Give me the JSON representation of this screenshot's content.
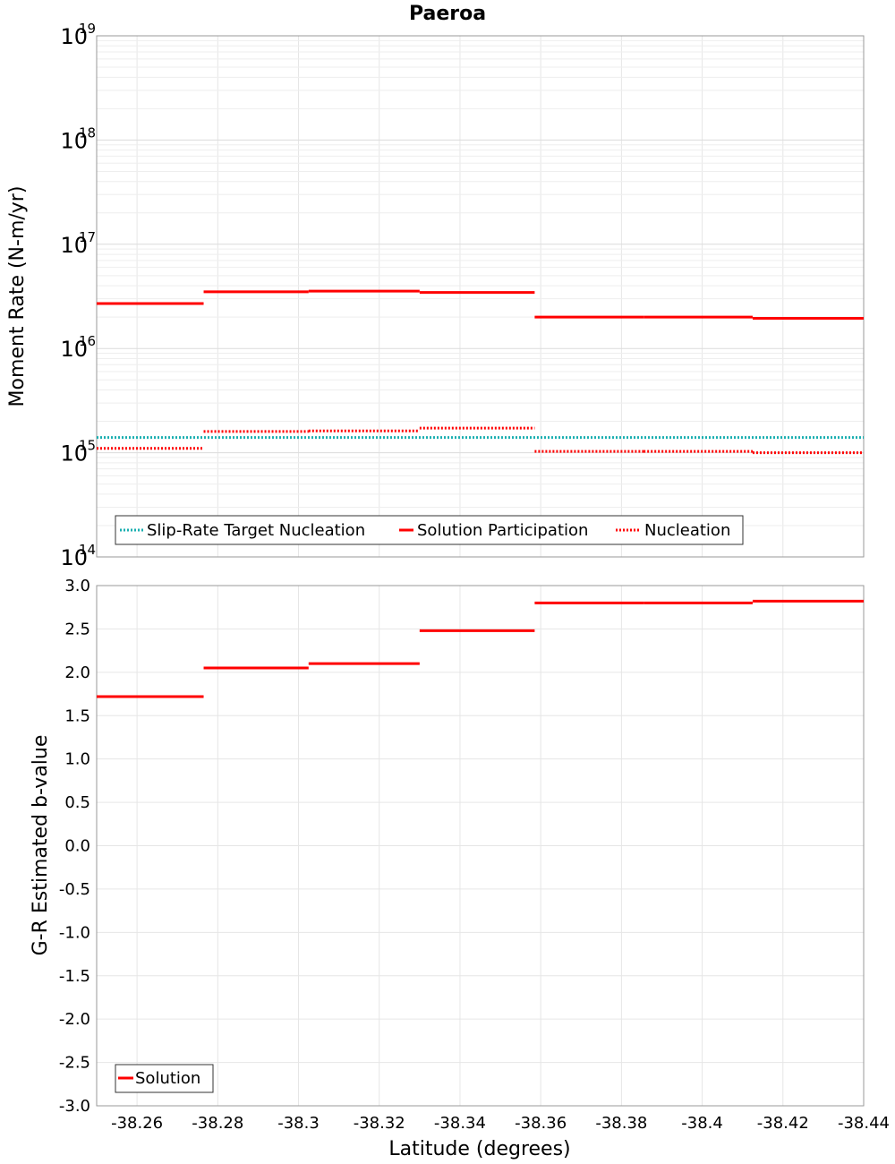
{
  "chart_data": [
    {
      "type": "line",
      "plot": "top",
      "title": "Paeroa",
      "ylabel": "Moment Rate (N-m/yr)",
      "yscale": "log",
      "ylim": [
        100000000000000.0,
        1e+19
      ],
      "xlim": [
        -38.25,
        -38.44
      ],
      "grid": true,
      "y_ticks": [
        {
          "base": "10",
          "exp": "14"
        },
        {
          "base": "10",
          "exp": "15"
        },
        {
          "base": "10",
          "exp": "16"
        },
        {
          "base": "10",
          "exp": "17"
        },
        {
          "base": "10",
          "exp": "18"
        },
        {
          "base": "10",
          "exp": "19"
        }
      ],
      "legend": {
        "position": "bottom-left",
        "entries": [
          "Slip-Rate Target Nucleation",
          "Solution Participation",
          "Nucleation"
        ]
      },
      "series": [
        {
          "name": "Slip-Rate Target Nucleation",
          "style": "dotted",
          "color": "#1aafb0",
          "segments": [
            [
              -38.25,
              -38.44,
              1400000000000000.0
            ]
          ]
        },
        {
          "name": "Solution Participation",
          "style": "solid",
          "color": "#ff0000",
          "segments": [
            [
              -38.25,
              -38.2765,
              2.7e+16
            ],
            [
              -38.2765,
              -38.3025,
              3.5e+16
            ],
            [
              -38.3025,
              -38.33,
              3.55e+16
            ],
            [
              -38.33,
              -38.3585,
              3.45e+16
            ],
            [
              -38.3585,
              -38.3855,
              2e+16
            ],
            [
              -38.3855,
              -38.4125,
              2e+16
            ],
            [
              -38.4125,
              -38.44,
              1.95e+16
            ]
          ]
        },
        {
          "name": "Nucleation",
          "style": "dotted",
          "color": "#ff0000",
          "segments": [
            [
              -38.25,
              -38.2765,
              1100000000000000.0
            ],
            [
              -38.2765,
              -38.3025,
              1600000000000000.0
            ],
            [
              -38.3025,
              -38.33,
              1620000000000000.0
            ],
            [
              -38.33,
              -38.3585,
              1720000000000000.0
            ],
            [
              -38.3585,
              -38.3855,
              1030000000000000.0
            ],
            [
              -38.3855,
              -38.4125,
              1030000000000000.0
            ],
            [
              -38.4125,
              -38.44,
              1000000000000000.0
            ]
          ]
        }
      ]
    },
    {
      "type": "line",
      "plot": "bottom",
      "xlabel": "Latitude (degrees)",
      "ylabel": "G-R Estimated b-value",
      "ylim": [
        -3.0,
        3.0
      ],
      "xlim": [
        -38.25,
        -38.44
      ],
      "grid": true,
      "y_ticks": [
        "-3.0",
        "-2.5",
        "-2.0",
        "-1.5",
        "-1.0",
        "-0.5",
        "0.0",
        "0.5",
        "1.0",
        "1.5",
        "2.0",
        "2.5",
        "3.0"
      ],
      "x_ticks": [
        "-38.26",
        "-38.28",
        "-38.3",
        "-38.32",
        "-38.34",
        "-38.36",
        "-38.38",
        "-38.4",
        "-38.42",
        "-38.44"
      ],
      "legend": {
        "position": "bottom-left",
        "entries": [
          "Solution"
        ]
      },
      "series": [
        {
          "name": "Solution",
          "style": "solid",
          "color": "#ff0000",
          "segments": [
            [
              -38.25,
              -38.2765,
              1.72
            ],
            [
              -38.2765,
              -38.3025,
              2.05
            ],
            [
              -38.3025,
              -38.33,
              2.1
            ],
            [
              -38.33,
              -38.3585,
              2.48
            ],
            [
              -38.3585,
              -38.3855,
              2.8
            ],
            [
              -38.3855,
              -38.4125,
              2.8
            ],
            [
              -38.4125,
              -38.44,
              2.82
            ]
          ]
        }
      ]
    }
  ]
}
